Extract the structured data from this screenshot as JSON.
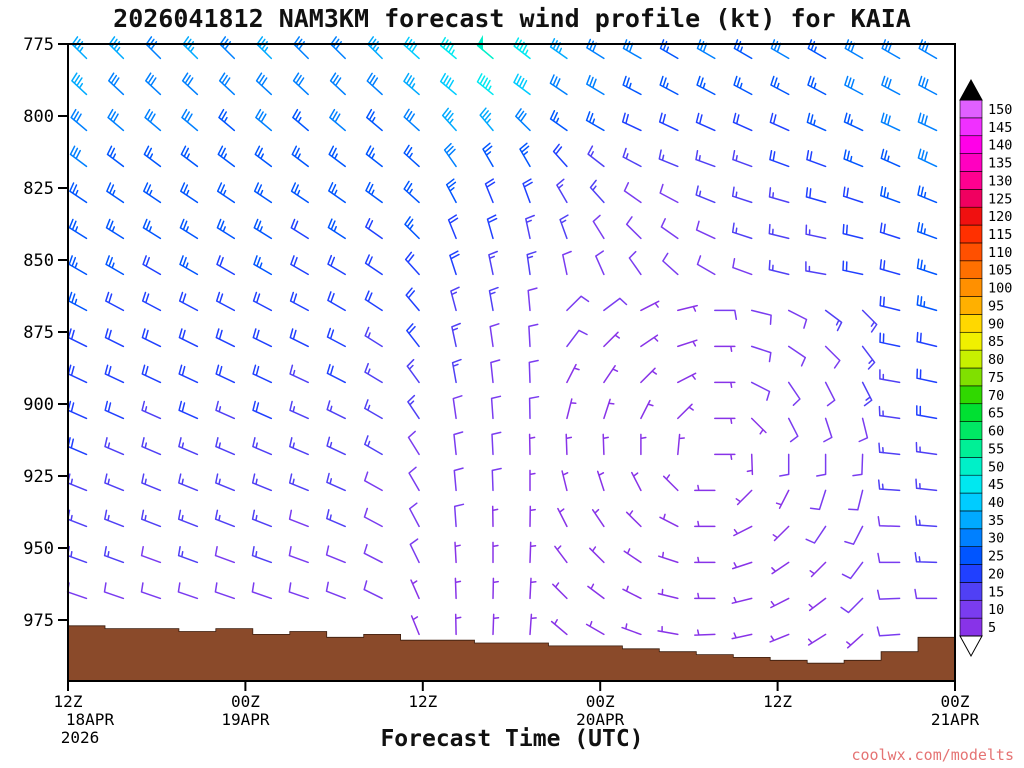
{
  "watermark": "coolwx.com/modelts",
  "chart_data": {
    "type": "wind-barb-profile",
    "title": "2026041812 NAM3KM forecast wind profile (kt) for KAIA",
    "xlabel": "Forecast Time (UTC)",
    "units": "kt",
    "model": "NAM3KM",
    "station": "KAIA",
    "init_time": "2026041812",
    "year_label": "2026",
    "y_axis": {
      "ticks": [
        775,
        800,
        825,
        850,
        875,
        900,
        925,
        950,
        975
      ],
      "top_hpa": 775,
      "bottom_hpa": 996
    },
    "x_axis": {
      "hours_range": [
        0,
        60
      ],
      "ticks": [
        {
          "hour": 0,
          "label": "12Z",
          "date": "18APR"
        },
        {
          "hour": 12,
          "label": "00Z",
          "date": "19APR"
        },
        {
          "hour": 24,
          "label": "12Z",
          "date": ""
        },
        {
          "hour": 36,
          "label": "00Z",
          "date": "20APR"
        },
        {
          "hour": 48,
          "label": "12Z",
          "date": ""
        },
        {
          "hour": 60,
          "label": "00Z",
          "date": "21APR"
        }
      ]
    },
    "colorbar": {
      "levels": [
        5,
        10,
        15,
        20,
        25,
        30,
        35,
        40,
        45,
        50,
        55,
        60,
        65,
        70,
        75,
        80,
        85,
        90,
        95,
        100,
        105,
        110,
        115,
        120,
        125,
        130,
        135,
        140,
        145,
        150
      ],
      "colors": [
        "#8833e8",
        "#7a3cf0",
        "#5040f5",
        "#2040ff",
        "#0055ff",
        "#0080ff",
        "#00aaff",
        "#00ccff",
        "#00e8f0",
        "#00f0c8",
        "#00f096",
        "#00e864",
        "#00e032",
        "#30d800",
        "#80e000",
        "#c8f000",
        "#f0f000",
        "#ffd800",
        "#ffb000",
        "#ff9000",
        "#ff7000",
        "#ff5000",
        "#ff3000",
        "#f01010",
        "#f00060",
        "#ff0090",
        "#ff00c0",
        "#ff00e8",
        "#f030ff",
        "#e060ff"
      ]
    },
    "terrain": {
      "color": "#8a4a2a",
      "top_hpa": [
        977,
        978,
        978,
        979,
        978,
        980,
        979,
        981,
        980,
        982,
        982,
        983,
        983,
        984,
        984,
        985,
        986,
        987,
        988,
        989,
        990,
        989,
        986,
        981,
        978
      ]
    },
    "barbs": {
      "pressure_levels": [
        780,
        792.5,
        805,
        817.5,
        830,
        842.5,
        855,
        867.5,
        880,
        892.5,
        905,
        917.5,
        930,
        942.5,
        955,
        967.5,
        980
      ],
      "n_time_cols": 24,
      "speed_kt": [
        [
          35,
          35,
          30,
          35,
          30,
          35,
          30,
          30,
          35,
          40,
          45,
          50,
          45,
          35,
          30,
          30,
          25,
          30,
          25,
          30,
          25,
          30,
          30,
          30
        ],
        [
          35,
          30,
          30,
          30,
          30,
          30,
          30,
          30,
          30,
          35,
          40,
          45,
          40,
          30,
          30,
          25,
          25,
          25,
          25,
          25,
          25,
          30,
          30,
          30
        ],
        [
          30,
          30,
          30,
          30,
          25,
          30,
          25,
          30,
          25,
          30,
          35,
          35,
          30,
          25,
          25,
          20,
          20,
          20,
          20,
          20,
          25,
          25,
          30,
          30
        ],
        [
          30,
          25,
          25,
          25,
          25,
          25,
          25,
          25,
          25,
          25,
          30,
          25,
          25,
          20,
          15,
          15,
          15,
          15,
          15,
          20,
          20,
          25,
          25,
          30
        ],
        [
          25,
          25,
          25,
          25,
          25,
          25,
          25,
          25,
          25,
          25,
          25,
          20,
          20,
          15,
          15,
          10,
          10,
          15,
          15,
          15,
          20,
          20,
          25,
          25
        ],
        [
          25,
          25,
          25,
          25,
          25,
          25,
          20,
          25,
          20,
          25,
          20,
          20,
          15,
          15,
          10,
          10,
          10,
          10,
          15,
          15,
          15,
          20,
          20,
          25
        ],
        [
          25,
          25,
          20,
          25,
          20,
          25,
          20,
          20,
          20,
          20,
          20,
          15,
          15,
          10,
          10,
          10,
          10,
          10,
          10,
          15,
          15,
          20,
          20,
          25
        ],
        [
          25,
          20,
          20,
          20,
          20,
          20,
          20,
          20,
          20,
          20,
          15,
          15,
          10,
          10,
          10,
          5,
          5,
          10,
          10,
          10,
          15,
          15,
          20,
          25
        ],
        [
          20,
          20,
          20,
          20,
          20,
          20,
          20,
          20,
          15,
          20,
          15,
          10,
          10,
          10,
          5,
          5,
          5,
          5,
          10,
          10,
          10,
          15,
          20,
          20
        ],
        [
          20,
          20,
          20,
          20,
          20,
          20,
          15,
          20,
          15,
          15,
          15,
          10,
          10,
          5,
          5,
          5,
          5,
          5,
          10,
          10,
          10,
          15,
          15,
          20
        ],
        [
          20,
          20,
          15,
          20,
          15,
          20,
          15,
          15,
          15,
          15,
          10,
          10,
          10,
          5,
          5,
          5,
          5,
          5,
          5,
          10,
          10,
          10,
          15,
          20
        ],
        [
          20,
          15,
          15,
          15,
          15,
          15,
          15,
          15,
          15,
          10,
          10,
          10,
          5,
          5,
          5,
          5,
          5,
          5,
          5,
          10,
          10,
          10,
          15,
          15
        ],
        [
          15,
          15,
          15,
          15,
          15,
          15,
          15,
          15,
          10,
          10,
          10,
          10,
          5,
          5,
          5,
          5,
          5,
          5,
          5,
          5,
          10,
          10,
          15,
          15
        ],
        [
          15,
          15,
          15,
          15,
          15,
          15,
          10,
          15,
          10,
          10,
          10,
          5,
          5,
          5,
          5,
          5,
          5,
          5,
          5,
          5,
          10,
          10,
          10,
          15
        ],
        [
          15,
          15,
          10,
          15,
          10,
          15,
          10,
          10,
          10,
          10,
          5,
          5,
          5,
          5,
          5,
          5,
          5,
          5,
          5,
          5,
          5,
          10,
          10,
          15
        ],
        [
          10,
          10,
          10,
          10,
          10,
          10,
          10,
          10,
          10,
          5,
          5,
          5,
          5,
          5,
          5,
          5,
          5,
          5,
          5,
          5,
          5,
          10,
          10,
          10
        ],
        [
          10,
          10,
          10,
          10,
          10,
          10,
          10,
          5,
          10,
          5,
          5,
          5,
          5,
          5,
          5,
          5,
          5,
          5,
          5,
          5,
          5,
          5,
          10,
          10
        ]
      ],
      "dir_deg": [
        [
          315,
          315,
          315,
          315,
          315,
          315,
          315,
          315,
          315,
          312,
          310,
          310,
          308,
          305,
          302,
          300,
          300,
          300,
          300,
          300,
          300,
          300,
          300,
          300
        ],
        [
          313,
          313,
          313,
          313,
          313,
          313,
          313,
          313,
          312,
          311,
          310,
          309,
          307,
          304,
          301,
          298,
          298,
          298,
          298,
          298,
          298,
          298,
          298,
          298
        ],
        [
          310,
          310,
          310,
          310,
          310,
          310,
          310,
          310,
          310,
          312,
          318,
          320,
          315,
          305,
          300,
          295,
          295,
          294,
          294,
          294,
          294,
          295,
          295,
          295
        ],
        [
          307,
          307,
          307,
          307,
          307,
          307,
          307,
          307,
          308,
          312,
          325,
          330,
          330,
          318,
          308,
          298,
          292,
          290,
          290,
          290,
          290,
          292,
          294,
          295
        ],
        [
          304,
          304,
          304,
          304,
          304,
          304,
          304,
          305,
          306,
          312,
          332,
          338,
          340,
          330,
          318,
          305,
          298,
          292,
          288,
          286,
          286,
          288,
          290,
          292
        ],
        [
          302,
          302,
          302,
          302,
          302,
          302,
          302,
          303,
          305,
          315,
          338,
          344,
          348,
          340,
          328,
          315,
          305,
          295,
          288,
          284,
          282,
          284,
          288,
          290
        ],
        [
          300,
          300,
          300,
          300,
          300,
          300,
          300,
          301,
          304,
          318,
          342,
          348,
          352,
          348,
          336,
          325,
          312,
          300,
          290,
          284,
          280,
          282,
          286,
          288
        ],
        [
          298,
          298,
          298,
          298,
          298,
          298,
          298,
          300,
          303,
          320,
          345,
          350,
          355,
          45,
          53,
          63,
          76,
          90,
          104,
          117,
          127,
          135,
          284,
          286
        ],
        [
          296,
          296,
          296,
          296,
          296,
          296,
          296,
          298,
          302,
          322,
          348,
          352,
          357,
          37,
          45,
          56,
          72,
          90,
          108,
          124,
          135,
          143,
          282,
          284
        ],
        [
          295,
          295,
          295,
          295,
          295,
          295,
          295,
          297,
          301,
          324,
          350,
          354,
          358,
          27,
          34,
          45,
          63,
          90,
          117,
          146,
          153,
          153,
          280,
          282
        ],
        [
          294,
          294,
          294,
          294,
          294,
          294,
          294,
          296,
          300,
          326,
          352,
          356,
          359,
          14,
          18,
          27,
          45,
          90,
          135,
          153,
          162,
          166,
          278,
          280
        ],
        [
          293,
          293,
          293,
          293,
          293,
          293,
          293,
          295,
          300,
          328,
          354,
          357,
          359,
          358,
          358,
          0,
          5,
          90,
          178,
          180,
          180,
          182,
          276,
          278
        ],
        [
          292,
          292,
          292,
          292,
          292,
          292,
          292,
          294,
          299,
          330,
          355,
          358,
          0,
          346,
          342,
          333,
          315,
          270,
          225,
          207,
          198,
          194,
          274,
          276
        ],
        [
          291,
          291,
          291,
          291,
          291,
          291,
          291,
          293,
          298,
          332,
          356,
          359,
          1,
          333,
          326,
          315,
          297,
          270,
          243,
          225,
          214,
          207,
          272,
          274
        ],
        [
          290,
          290,
          290,
          290,
          290,
          290,
          290,
          292,
          297,
          334,
          357,
          0,
          2,
          323,
          315,
          304,
          288,
          270,
          252,
          236,
          225,
          217,
          270,
          272
        ],
        [
          289,
          289,
          289,
          289,
          289,
          289,
          289,
          291,
          296,
          336,
          358,
          1,
          3,
          315,
          307,
          297,
          284,
          270,
          256,
          243,
          233,
          225,
          268,
          270
        ],
        [
          288,
          288,
          288,
          288,
          288,
          288,
          288,
          290,
          295,
          338,
          359,
          2,
          4,
          310,
          300,
          290,
          280,
          268,
          258,
          248,
          238,
          228,
          266,
          268
        ]
      ]
    }
  }
}
